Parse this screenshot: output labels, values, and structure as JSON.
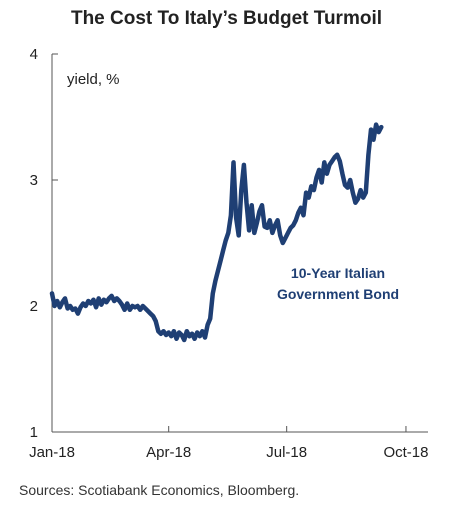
{
  "chart_data": {
    "type": "line",
    "title": "The Cost To Italy’s Budget Turmoil",
    "ylabel": "yield, %",
    "ylim": [
      1,
      4
    ],
    "yticks": [
      1,
      2,
      3,
      4
    ],
    "xticks": [
      "Jan-18",
      "Apr-18",
      "Jul-18",
      "Oct-18"
    ],
    "xrange_days": [
      0,
      290
    ],
    "grid": false,
    "annotation": [
      "10-Year Italian",
      "Government Bond"
    ],
    "series": [
      {
        "name": "10-Year Italian Government Bond",
        "color": "#1f3f74",
        "points": [
          [
            0,
            2.1
          ],
          [
            2,
            2.0
          ],
          [
            4,
            2.04
          ],
          [
            6,
            1.99
          ],
          [
            8,
            2.03
          ],
          [
            10,
            2.06
          ],
          [
            12,
            1.98
          ],
          [
            14,
            2.0
          ],
          [
            16,
            1.97
          ],
          [
            18,
            1.98
          ],
          [
            20,
            1.94
          ],
          [
            22,
            1.99
          ],
          [
            24,
            2.02
          ],
          [
            26,
            2.0
          ],
          [
            28,
            2.04
          ],
          [
            30,
            2.02
          ],
          [
            32,
            2.05
          ],
          [
            34,
            1.99
          ],
          [
            36,
            2.06
          ],
          [
            38,
            2.01
          ],
          [
            40,
            2.05
          ],
          [
            42,
            2.03
          ],
          [
            44,
            2.06
          ],
          [
            46,
            2.08
          ],
          [
            48,
            2.04
          ],
          [
            50,
            2.06
          ],
          [
            52,
            2.04
          ],
          [
            54,
            2.01
          ],
          [
            56,
            1.97
          ],
          [
            58,
            2.02
          ],
          [
            60,
            1.97
          ],
          [
            62,
            2.0
          ],
          [
            64,
            1.99
          ],
          [
            66,
            2.0
          ],
          [
            68,
            1.97
          ],
          [
            70,
            2.0
          ],
          [
            72,
            1.98
          ],
          [
            74,
            1.96
          ],
          [
            76,
            1.94
          ],
          [
            78,
            1.92
          ],
          [
            80,
            1.88
          ],
          [
            82,
            1.8
          ],
          [
            84,
            1.78
          ],
          [
            86,
            1.8
          ],
          [
            88,
            1.77
          ],
          [
            90,
            1.79
          ],
          [
            92,
            1.76
          ],
          [
            94,
            1.8
          ],
          [
            96,
            1.74
          ],
          [
            98,
            1.79
          ],
          [
            100,
            1.77
          ],
          [
            102,
            1.73
          ],
          [
            104,
            1.8
          ],
          [
            106,
            1.76
          ],
          [
            108,
            1.78
          ],
          [
            110,
            1.74
          ],
          [
            112,
            1.79
          ],
          [
            114,
            1.76
          ],
          [
            116,
            1.8
          ],
          [
            118,
            1.75
          ],
          [
            120,
            1.85
          ],
          [
            122,
            1.9
          ],
          [
            124,
            2.1
          ],
          [
            126,
            2.2
          ],
          [
            128,
            2.28
          ],
          [
            130,
            2.36
          ],
          [
            132,
            2.44
          ],
          [
            134,
            2.52
          ],
          [
            136,
            2.58
          ],
          [
            138,
            2.72
          ],
          [
            140,
            3.14
          ],
          [
            142,
            2.7
          ],
          [
            144,
            2.56
          ],
          [
            146,
            2.92
          ],
          [
            148,
            3.12
          ],
          [
            150,
            2.82
          ],
          [
            152,
            2.6
          ],
          [
            154,
            2.8
          ],
          [
            156,
            2.58
          ],
          [
            158,
            2.66
          ],
          [
            160,
            2.75
          ],
          [
            162,
            2.8
          ],
          [
            164,
            2.63
          ],
          [
            166,
            2.62
          ],
          [
            168,
            2.68
          ],
          [
            170,
            2.58
          ],
          [
            172,
            2.64
          ],
          [
            174,
            2.68
          ],
          [
            176,
            2.56
          ],
          [
            178,
            2.5
          ],
          [
            180,
            2.54
          ],
          [
            182,
            2.58
          ],
          [
            184,
            2.62
          ],
          [
            186,
            2.64
          ],
          [
            188,
            2.68
          ],
          [
            190,
            2.74
          ],
          [
            192,
            2.78
          ],
          [
            194,
            2.72
          ],
          [
            196,
            2.9
          ],
          [
            198,
            2.86
          ],
          [
            200,
            2.95
          ],
          [
            202,
            2.92
          ],
          [
            204,
            3.02
          ],
          [
            206,
            3.08
          ],
          [
            208,
            2.98
          ],
          [
            210,
            3.14
          ],
          [
            212,
            3.05
          ],
          [
            214,
            3.12
          ],
          [
            216,
            3.15
          ],
          [
            218,
            3.18
          ],
          [
            220,
            3.2
          ],
          [
            222,
            3.15
          ],
          [
            224,
            3.05
          ],
          [
            226,
            2.96
          ],
          [
            228,
            2.94
          ],
          [
            230,
            3.0
          ],
          [
            232,
            2.9
          ],
          [
            234,
            2.82
          ],
          [
            236,
            2.85
          ],
          [
            238,
            2.92
          ],
          [
            240,
            2.86
          ],
          [
            242,
            2.9
          ],
          [
            244,
            3.2
          ],
          [
            246,
            3.4
          ],
          [
            248,
            3.32
          ],
          [
            250,
            3.44
          ],
          [
            252,
            3.38
          ],
          [
            254,
            3.42
          ]
        ]
      }
    ]
  },
  "source": "Sources: Scotiabank Economics, Bloomberg."
}
